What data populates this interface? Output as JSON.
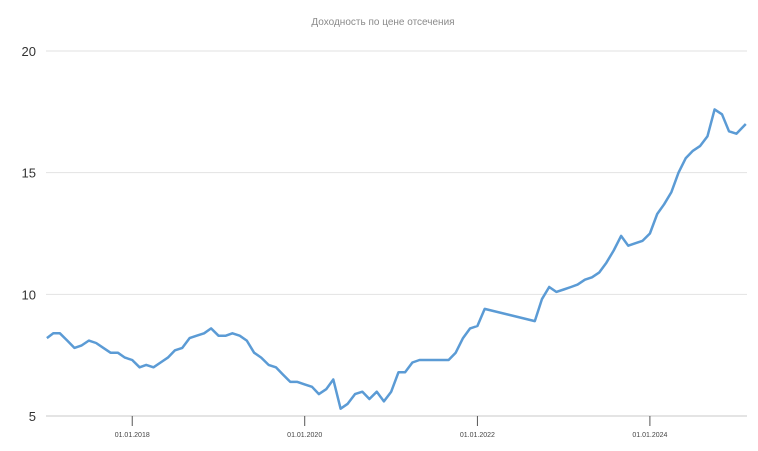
{
  "chart_data": {
    "type": "line",
    "title": "Доходность по цене отсечения",
    "xlabel": "",
    "ylabel": "",
    "ylim": [
      5,
      20
    ],
    "xlim": [
      "2017-01-01",
      "2025-02-15"
    ],
    "y_ticks": [
      "5",
      "10",
      "15",
      "20"
    ],
    "x_ticks": [
      {
        "date": "2018-01-01",
        "label": "01.01.2018"
      },
      {
        "date": "2020-01-01",
        "label": "01.01.2020"
      },
      {
        "date": "2022-01-01",
        "label": "01.01.2022"
      },
      {
        "date": "2024-01-01",
        "label": "01.01.2024"
      }
    ],
    "grid": "horizontal",
    "color": "#5b9bd5",
    "points": [
      [
        "2017-01-05",
        8.2
      ],
      [
        "2017-02-01",
        8.4
      ],
      [
        "2017-03-01",
        8.4
      ],
      [
        "2017-04-01",
        8.1
      ],
      [
        "2017-05-01",
        7.8
      ],
      [
        "2017-06-01",
        7.9
      ],
      [
        "2017-07-01",
        8.1
      ],
      [
        "2017-08-01",
        8.0
      ],
      [
        "2017-09-01",
        7.8
      ],
      [
        "2017-10-01",
        7.6
      ],
      [
        "2017-11-01",
        7.6
      ],
      [
        "2017-12-01",
        7.4
      ],
      [
        "2018-01-01",
        7.3
      ],
      [
        "2018-02-01",
        7.0
      ],
      [
        "2018-03-01",
        7.1
      ],
      [
        "2018-04-01",
        7.0
      ],
      [
        "2018-05-01",
        7.2
      ],
      [
        "2018-06-01",
        7.4
      ],
      [
        "2018-07-01",
        7.7
      ],
      [
        "2018-08-01",
        7.8
      ],
      [
        "2018-09-01",
        8.2
      ],
      [
        "2018-10-01",
        8.3
      ],
      [
        "2018-11-01",
        8.4
      ],
      [
        "2018-12-01",
        8.6
      ],
      [
        "2019-01-01",
        8.3
      ],
      [
        "2019-02-01",
        8.3
      ],
      [
        "2019-03-01",
        8.4
      ],
      [
        "2019-04-01",
        8.3
      ],
      [
        "2019-05-01",
        8.1
      ],
      [
        "2019-06-01",
        7.6
      ],
      [
        "2019-07-01",
        7.4
      ],
      [
        "2019-08-01",
        7.1
      ],
      [
        "2019-09-01",
        7.0
      ],
      [
        "2019-10-01",
        6.7
      ],
      [
        "2019-11-01",
        6.4
      ],
      [
        "2019-12-01",
        6.4
      ],
      [
        "2020-01-01",
        6.3
      ],
      [
        "2020-02-01",
        6.2
      ],
      [
        "2020-03-01",
        5.9
      ],
      [
        "2020-04-01",
        6.1
      ],
      [
        "2020-05-01",
        6.5
      ],
      [
        "2020-06-01",
        5.3
      ],
      [
        "2020-07-01",
        5.5
      ],
      [
        "2020-08-01",
        5.9
      ],
      [
        "2020-09-01",
        6.0
      ],
      [
        "2020-10-01",
        5.7
      ],
      [
        "2020-11-01",
        6.0
      ],
      [
        "2020-12-01",
        5.6
      ],
      [
        "2021-01-01",
        6.0
      ],
      [
        "2021-02-01",
        6.8
      ],
      [
        "2021-03-01",
        6.8
      ],
      [
        "2021-04-01",
        7.2
      ],
      [
        "2021-05-01",
        7.3
      ],
      [
        "2021-06-01",
        7.3
      ],
      [
        "2021-07-01",
        7.3
      ],
      [
        "2021-08-01",
        7.3
      ],
      [
        "2021-09-01",
        7.3
      ],
      [
        "2021-10-01",
        7.6
      ],
      [
        "2021-11-01",
        8.2
      ],
      [
        "2021-12-01",
        8.6
      ],
      [
        "2022-01-01",
        8.7
      ],
      [
        "2022-02-01",
        9.4
      ],
      [
        "2022-09-01",
        8.9
      ],
      [
        "2022-10-01",
        9.8
      ],
      [
        "2022-11-01",
        10.3
      ],
      [
        "2022-12-01",
        10.1
      ],
      [
        "2023-01-01",
        10.2
      ],
      [
        "2023-02-01",
        10.3
      ],
      [
        "2023-03-01",
        10.4
      ],
      [
        "2023-04-01",
        10.6
      ],
      [
        "2023-05-01",
        10.7
      ],
      [
        "2023-06-01",
        10.9
      ],
      [
        "2023-07-01",
        11.3
      ],
      [
        "2023-08-01",
        11.8
      ],
      [
        "2023-09-01",
        12.4
      ],
      [
        "2023-10-01",
        12.0
      ],
      [
        "2023-11-01",
        12.1
      ],
      [
        "2023-12-01",
        12.2
      ],
      [
        "2024-01-01",
        12.5
      ],
      [
        "2024-02-01",
        13.3
      ],
      [
        "2024-03-01",
        13.7
      ],
      [
        "2024-04-01",
        14.2
      ],
      [
        "2024-05-01",
        15.0
      ],
      [
        "2024-06-01",
        15.6
      ],
      [
        "2024-07-01",
        15.9
      ],
      [
        "2024-08-01",
        16.1
      ],
      [
        "2024-09-01",
        16.5
      ],
      [
        "2024-10-01",
        17.6
      ],
      [
        "2024-11-01",
        17.4
      ],
      [
        "2024-12-01",
        16.7
      ],
      [
        "2025-01-01",
        16.6
      ],
      [
        "2025-02-10",
        17.0
      ]
    ]
  }
}
